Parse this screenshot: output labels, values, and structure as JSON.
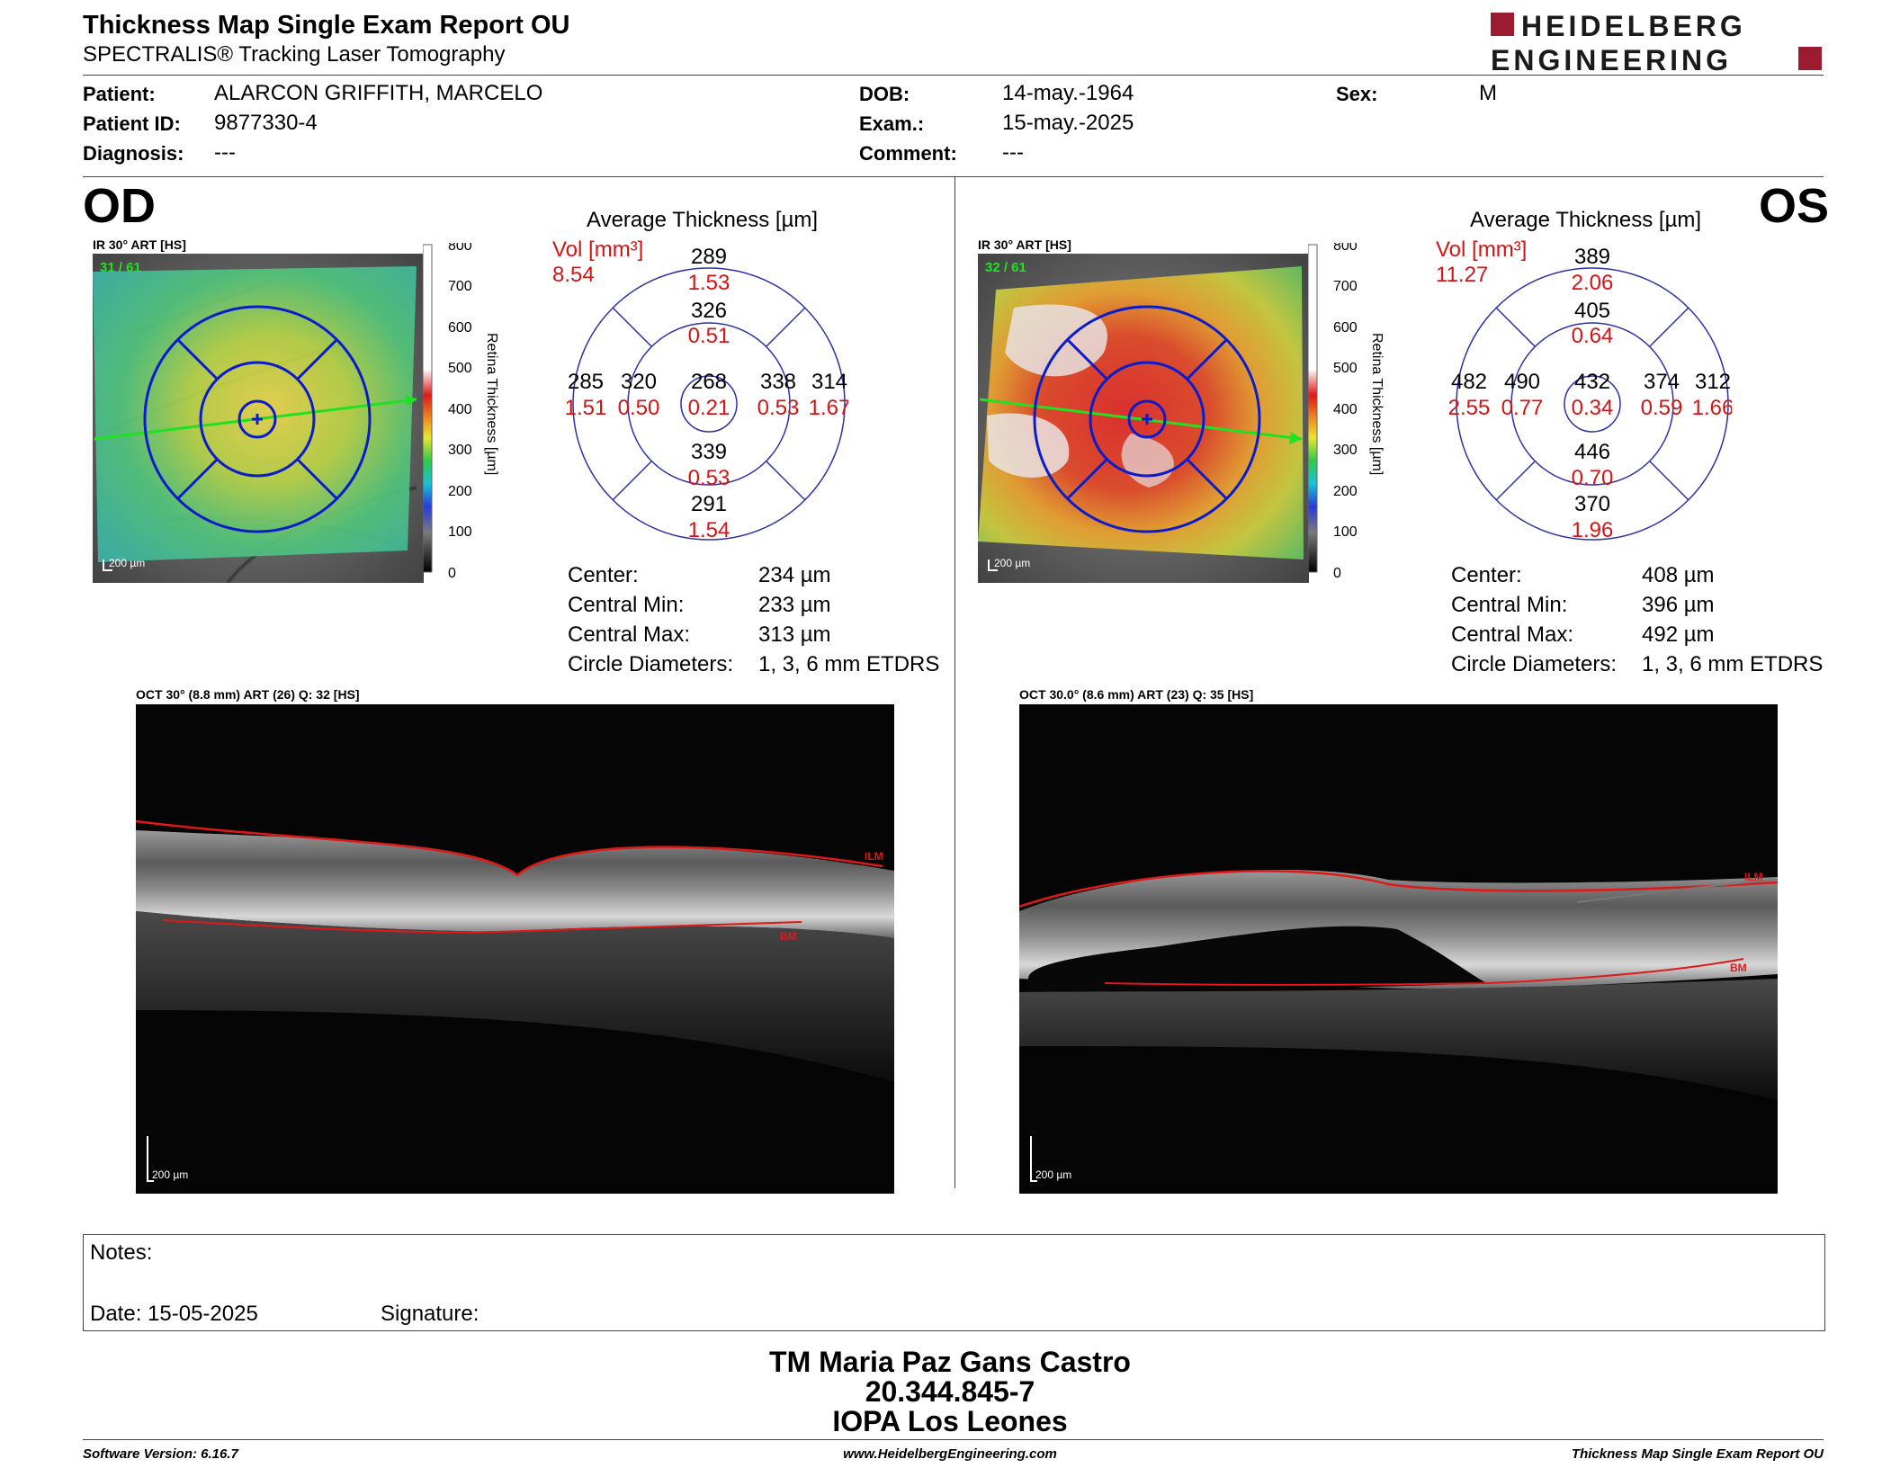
{
  "header": {
    "title": "Thickness Map Single Exam Report OU",
    "subtitle": "SPECTRALIS® Tracking Laser Tomography",
    "logo_line1": "HEIDELBERG",
    "logo_line2": "ENGINEERING",
    "logo_color": "#9b1b30"
  },
  "patient": {
    "patient_label": "Patient:",
    "patient_value": "ALARCON GRIFFITH, MARCELO",
    "id_label": "Patient ID:",
    "id_value": "9877330-4",
    "diagnosis_label": "Diagnosis:",
    "diagnosis_value": "---",
    "dob_label": "DOB:",
    "dob_value": "14-may.-1964",
    "exam_label": "Exam.:",
    "exam_value": "15-may.-2025",
    "comment_label": "Comment:",
    "comment_value": "---",
    "sex_label": "Sex:",
    "sex_value": "M"
  },
  "od": {
    "eye": "OD",
    "ir_caption": "IR 30° ART [HS]",
    "frame_count": "31 / 61",
    "scale_label": "200 µm",
    "colorbar_ticks": [
      "800",
      "700",
      "600",
      "500",
      "400",
      "300",
      "200",
      "100",
      "0"
    ],
    "colorbar_label": "Retina Thickness [µm]",
    "avg_title": "Average Thickness [µm]",
    "vol_label": "Vol [mm³]",
    "vol_total": "8.54",
    "grid": {
      "outer_sup": {
        "t": "289",
        "v": "1.53"
      },
      "inner_sup": {
        "t": "326",
        "v": "0.51"
      },
      "outer_temp": {
        "t": "285",
        "v": "1.51"
      },
      "inner_temp": {
        "t": "320",
        "v": "0.50"
      },
      "center": {
        "t": "268",
        "v": "0.21"
      },
      "inner_nas": {
        "t": "338",
        "v": "0.53"
      },
      "outer_nas": {
        "t": "314",
        "v": "1.67"
      },
      "inner_inf": {
        "t": "339",
        "v": "0.53"
      },
      "outer_inf": {
        "t": "291",
        "v": "1.54"
      }
    },
    "stats": [
      {
        "label": "Center:",
        "value": "234 µm"
      },
      {
        "label": "Central Min:",
        "value": "233 µm"
      },
      {
        "label": "Central Max:",
        "value": "313 µm"
      },
      {
        "label": "Circle Diameters:",
        "value": "1, 3, 6 mm ETDRS"
      }
    ],
    "oct_caption": "OCT 30° (8.8 mm) ART (26) Q: 32 [HS]",
    "oct_scale": "200 µm",
    "ilm": "ILM",
    "bm": "BM"
  },
  "os": {
    "eye": "OS",
    "ir_caption": "IR 30° ART [HS]",
    "frame_count": "32 / 61",
    "scale_label": "200 µm",
    "colorbar_ticks": [
      "800",
      "700",
      "600",
      "500",
      "400",
      "300",
      "200",
      "100",
      "0"
    ],
    "colorbar_label": "Retina Thickness [µm]",
    "avg_title": "Average Thickness [µm]",
    "vol_label": "Vol [mm³]",
    "vol_total": "11.27",
    "grid": {
      "outer_sup": {
        "t": "389",
        "v": "2.06"
      },
      "inner_sup": {
        "t": "405",
        "v": "0.64"
      },
      "outer_temp": {
        "t": "482",
        "v": "2.55"
      },
      "inner_temp": {
        "t": "490",
        "v": "0.77"
      },
      "center": {
        "t": "432",
        "v": "0.34"
      },
      "inner_nas": {
        "t": "374",
        "v": "0.59"
      },
      "outer_nas": {
        "t": "312",
        "v": "1.66"
      },
      "inner_inf": {
        "t": "446",
        "v": "0.70"
      },
      "outer_inf": {
        "t": "370",
        "v": "1.96"
      }
    },
    "stats": [
      {
        "label": "Center:",
        "value": "408 µm"
      },
      {
        "label": "Central Min:",
        "value": "396 µm"
      },
      {
        "label": "Central Max:",
        "value": "492 µm"
      },
      {
        "label": "Circle Diameters:",
        "value": "1, 3, 6 mm ETDRS"
      }
    ],
    "oct_caption": "OCT 30.0° (8.6 mm) ART (23) Q: 35 [HS]",
    "oct_scale": "200 µm",
    "ilm": "ILM",
    "bm": "BM"
  },
  "notes": {
    "notes_label": "Notes:",
    "date_label": "Date: 15-05-2025",
    "signature_label": "Signature:"
  },
  "signoff": {
    "name": "TM Maria Paz Gans Castro",
    "id": "20.344.845-7",
    "org": "IOPA Los Leones"
  },
  "footer": {
    "software": "Software Version: 6.16.7",
    "website": "www.HeidelbergEngineering.com",
    "report": "Thickness Map Single Exam Report OU"
  }
}
